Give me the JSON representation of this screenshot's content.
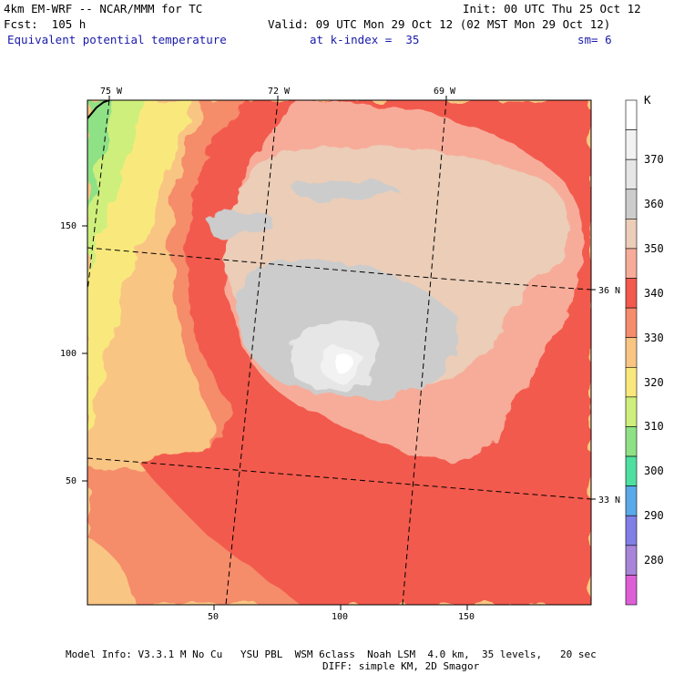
{
  "header": {
    "model_title": "4km EM-WRF -- NCAR/MMM for TC",
    "forecast_hour": "Fcst:  105 h",
    "init_time": "Init: 00 UTC Thu 25 Oct 12",
    "valid_time": "Valid: 09 UTC Mon 29 Oct 12 (02 MST Mon 29 Oct 12)",
    "field_name": "Equivalent potential temperature",
    "level": "at k-index =  35",
    "smoothing": "sm= 6"
  },
  "map": {
    "lon_labels": [
      "75 W",
      "72 W",
      "69 W"
    ],
    "lat_labels": [
      "36 N",
      "33 N"
    ],
    "y_ticks": [
      "150",
      "100",
      "50"
    ],
    "x_ticks": [
      "50",
      "100",
      "150"
    ]
  },
  "colorbar": {
    "unit": "K",
    "levels": [
      "370",
      "360",
      "350",
      "340",
      "330",
      "320",
      "310",
      "300",
      "290",
      "280"
    ],
    "colors": [
      "#ffffff",
      "#f2f2f2",
      "#e6e6e6",
      "#cccccc",
      "#ebcdb8",
      "#f7ac99",
      "#f25a4e",
      "#f58c6b",
      "#f9c583",
      "#f9e97d",
      "#cfef7c",
      "#8fe186",
      "#4fdfa0",
      "#5aa9e8",
      "#7f7fe5",
      "#a785d8",
      "#dd5fd6"
    ]
  },
  "footer": {
    "line1": "Model Info: V3.3.1 M No Cu   YSU PBL  WSM 6class  Noah LSM  4.0 km,  35 levels,   20 sec",
    "line2": "DIFF: simple KM, 2D Smagor"
  }
}
